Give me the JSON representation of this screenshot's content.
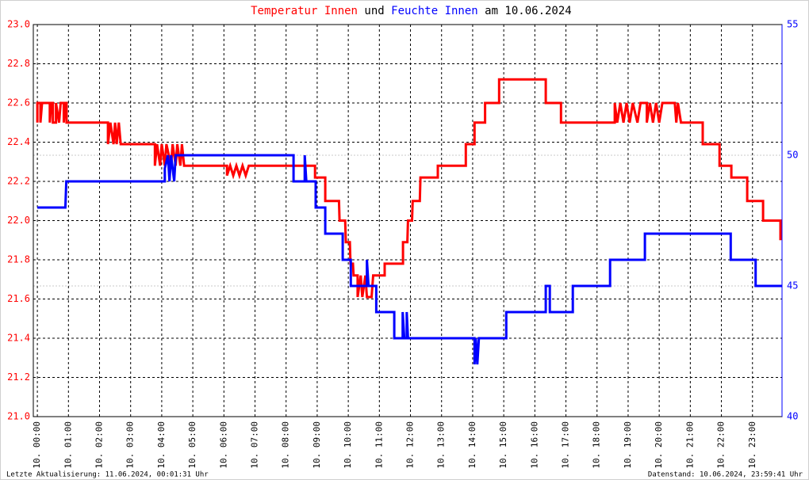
{
  "chart_data": {
    "type": "line",
    "title_parts": [
      {
        "text": "Temperatur Innen",
        "color": "#ff0000"
      },
      {
        "text": " und ",
        "color": "#000000"
      },
      {
        "text": "Feuchte Innen",
        "color": "#0000ff"
      },
      {
        "text": " am 10.06.2024",
        "color": "#000000"
      }
    ],
    "footer_left": "Letzte Aktualisierung: 11.06.2024, 00:01:31 Uhr",
    "footer_right": "Datenstand: 10.06.2024, 23:59:41 Uhr",
    "xlim": [
      -0.13,
      23.95
    ],
    "xticks": [
      {
        "value": 0,
        "label": "10. 00:00"
      },
      {
        "value": 1,
        "label": "10. 01:00"
      },
      {
        "value": 2,
        "label": "10. 02:00"
      },
      {
        "value": 3,
        "label": "10. 03:00"
      },
      {
        "value": 4,
        "label": "10. 04:00"
      },
      {
        "value": 5,
        "label": "10. 05:00"
      },
      {
        "value": 6,
        "label": "10. 06:00"
      },
      {
        "value": 7,
        "label": "10. 07:00"
      },
      {
        "value": 8,
        "label": "10. 08:00"
      },
      {
        "value": 9,
        "label": "10. 09:00"
      },
      {
        "value": 10,
        "label": "10. 10:00"
      },
      {
        "value": 11,
        "label": "10. 11:00"
      },
      {
        "value": 12,
        "label": "10. 12:00"
      },
      {
        "value": 13,
        "label": "10. 13:00"
      },
      {
        "value": 14,
        "label": "10. 14:00"
      },
      {
        "value": 15,
        "label": "10. 15:00"
      },
      {
        "value": 16,
        "label": "10. 16:00"
      },
      {
        "value": 17,
        "label": "10. 17:00"
      },
      {
        "value": 18,
        "label": "10. 18:00"
      },
      {
        "value": 19,
        "label": "10. 19:00"
      },
      {
        "value": 20,
        "label": "10. 20:00"
      },
      {
        "value": 21,
        "label": "10. 21:00"
      },
      {
        "value": 22,
        "label": "10. 22:00"
      },
      {
        "value": 23,
        "label": "10. 23:00"
      }
    ],
    "ylim": [
      21.0,
      23.0
    ],
    "yticks": [
      {
        "value": 21,
        "label": "21.0"
      },
      21.2,
      21.4,
      21.6,
      21.8,
      {
        "value": 22,
        "label": "22.0"
      },
      22.2,
      22.4,
      22.6,
      22.8,
      {
        "value": 23,
        "label": "23.0"
      }
    ],
    "y2lim": [
      40,
      55
    ],
    "y2ticks": [
      40,
      45,
      50,
      55
    ],
    "grid": true,
    "y2_grid": true,
    "y_color": "#ff0000",
    "y2_color": "#0000ff",
    "series": [
      {
        "color": "#ff0000",
        "axis": "y",
        "x": [
          0,
          0,
          0.1,
          0.1,
          0.15,
          0.4,
          0.4,
          0.45,
          0.5,
          0.5,
          0.6,
          0.6,
          0.7,
          0.75,
          0.85,
          0.85,
          0.9,
          0.94,
          0.94,
          2.27,
          2.27,
          2.35,
          2.45,
          2.5,
          2.55,
          2.62,
          2.68,
          3.78,
          3.78,
          3.85,
          3.95,
          4.0,
          4.1,
          4.15,
          4.3,
          4.35,
          4.45,
          4.5,
          4.6,
          4.65,
          4.72,
          6.1,
          6.1,
          6.2,
          6.3,
          6.4,
          6.5,
          6.6,
          6.7,
          6.8,
          8.93,
          8.93,
          9.26,
          9.26,
          9.7,
          9.72,
          9.9,
          9.92,
          10.05,
          10.07,
          10.15,
          10.17,
          10.3,
          10.3,
          10.4,
          10.45,
          10.55,
          10.6,
          10.75,
          10.8,
          11.17,
          11.17,
          11.76,
          11.76,
          11.9,
          11.92,
          12.05,
          12.07,
          12.3,
          12.32,
          12.88,
          12.88,
          13.78,
          13.78,
          14.06,
          14.06,
          14.4,
          14.4,
          14.85,
          14.85,
          16.35,
          16.35,
          16.84,
          16.84,
          18.57,
          18.57,
          18.65,
          18.75,
          18.85,
          18.95,
          19.05,
          19.15,
          19.3,
          19.4,
          19.6,
          19.6,
          19.7,
          19.8,
          19.9,
          20.0,
          20.1,
          20.5,
          20.55,
          20.6,
          20.7,
          21.4,
          21.4,
          21.94,
          21.94,
          22.32,
          22.32,
          22.83,
          22.83,
          23.34,
          23.34,
          23.9,
          23.9
        ],
        "values": [
          22.5,
          22.6,
          22.6,
          22.5,
          22.6,
          22.6,
          22.5,
          22.6,
          22.6,
          22.5,
          22.5,
          22.6,
          22.5,
          22.6,
          22.6,
          22.5,
          22.6,
          22.6,
          22.5,
          22.5,
          22.39,
          22.5,
          22.39,
          22.5,
          22.39,
          22.5,
          22.39,
          22.39,
          22.28,
          22.39,
          22.28,
          22.39,
          22.28,
          22.39,
          22.28,
          22.39,
          22.28,
          22.39,
          22.28,
          22.39,
          22.28,
          22.28,
          22.23,
          22.28,
          22.23,
          22.28,
          22.23,
          22.28,
          22.23,
          22.28,
          22.28,
          22.22,
          22.22,
          22.1,
          22.1,
          22.0,
          22.0,
          21.89,
          21.89,
          21.78,
          21.78,
          21.72,
          21.72,
          21.61,
          21.72,
          21.61,
          21.72,
          21.61,
          21.61,
          21.72,
          21.72,
          21.78,
          21.78,
          21.89,
          21.89,
          22.0,
          22.0,
          22.1,
          22.1,
          22.22,
          22.22,
          22.28,
          22.28,
          22.39,
          22.39,
          22.5,
          22.5,
          22.6,
          22.6,
          22.72,
          22.72,
          22.6,
          22.6,
          22.5,
          22.5,
          22.6,
          22.5,
          22.6,
          22.5,
          22.6,
          22.5,
          22.6,
          22.5,
          22.6,
          22.6,
          22.5,
          22.6,
          22.5,
          22.6,
          22.5,
          22.6,
          22.6,
          22.5,
          22.6,
          22.5,
          22.5,
          22.39,
          22.39,
          22.28,
          22.28,
          22.22,
          22.22,
          22.1,
          22.1,
          22.0,
          22.0,
          21.9
        ]
      },
      {
        "color": "#0000ff",
        "axis": "y2",
        "x": [
          0,
          0.9,
          0.93,
          4.1,
          4.1,
          4.2,
          4.25,
          4.3,
          4.4,
          4.45,
          8.24,
          8.24,
          8.6,
          8.6,
          8.65,
          8.95,
          8.95,
          9.26,
          9.26,
          9.82,
          9.82,
          10.08,
          10.08,
          10.6,
          10.6,
          10.65,
          10.9,
          10.9,
          11.48,
          11.48,
          11.75,
          11.75,
          11.8,
          11.88,
          11.88,
          11.92,
          14.06,
          14.06,
          14.1,
          14.15,
          14.2,
          15.08,
          15.08,
          16.35,
          16.35,
          16.48,
          16.48,
          17.22,
          17.22,
          18.42,
          18.42,
          19.54,
          19.54,
          22.3,
          22.3,
          23.1,
          23.1,
          23.95
        ],
        "values": [
          48,
          48,
          49,
          49,
          49.5,
          50,
          49,
          50,
          49,
          50,
          50,
          49,
          49,
          50,
          49,
          49,
          48,
          48,
          47,
          47,
          46,
          46,
          45,
          45,
          46,
          45,
          45,
          44,
          44,
          43,
          43,
          44,
          43,
          43,
          44,
          43,
          43,
          42,
          43,
          42,
          43,
          43,
          44,
          44,
          45,
          45,
          44,
          44,
          45,
          45,
          46,
          46,
          47,
          47,
          46,
          46,
          45,
          45
        ]
      }
    ]
  }
}
